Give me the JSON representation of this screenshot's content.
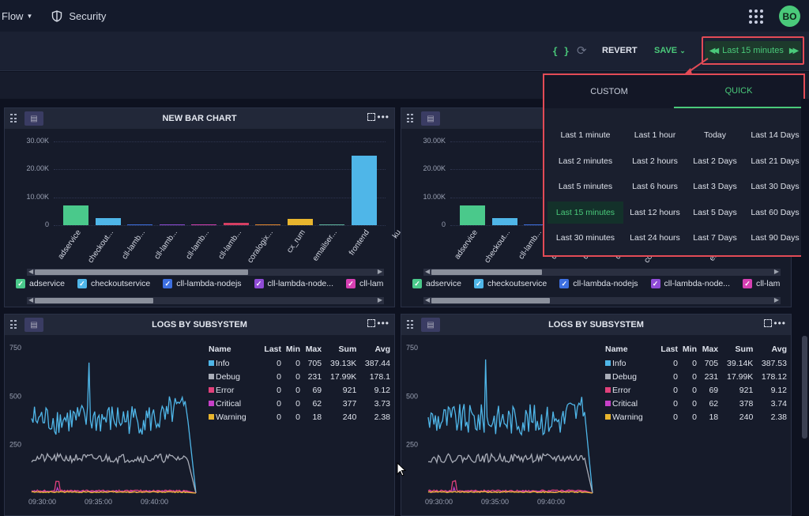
{
  "topbar": {
    "flow_label": "Flow",
    "security_label": "Security",
    "avatar_initials": "BO"
  },
  "toolbar": {
    "braces_icon": "{ }",
    "revert_label": "REVERT",
    "save_label": "SAVE",
    "time_range_label": "Last 15 minutes"
  },
  "dropdown": {
    "tabs": [
      "CUSTOM",
      "QUICK"
    ],
    "active_tab": "QUICK",
    "options": [
      [
        "Last 1 minute",
        "Last 1 hour",
        "Today",
        "Last 14 Days"
      ],
      [
        "Last 2 minutes",
        "Last 2 hours",
        "Last 2 Days",
        "Last 21 Days"
      ],
      [
        "Last 5 minutes",
        "Last 6 hours",
        "Last 3 Days",
        "Last 30 Days"
      ],
      [
        "Last 15 minutes",
        "Last 12 hours",
        "Last 5 Days",
        "Last 60 Days"
      ],
      [
        "Last 30 minutes",
        "Last 24 hours",
        "Last 7 Days",
        "Last 90 Days"
      ]
    ],
    "selected": "Last 15 minutes"
  },
  "bar_panels": [
    {
      "title": "NEW BAR CHART"
    },
    {
      "title": ""
    }
  ],
  "bar_chart": {
    "y_ticks": [
      "30.00K",
      "20.00K",
      "10.00K",
      "0"
    ],
    "categories": [
      "adservice",
      "checkout...",
      "cll-lamb...",
      "cll-lamb...",
      "cll-lamb...",
      "cll-lamb...",
      "coralogix...",
      "cx_rum",
      "emailser...",
      "frontend",
      "ku"
    ],
    "legend": [
      {
        "name": "adservice",
        "color": "#4ac98b"
      },
      {
        "name": "checkoutservice",
        "color": "#4fb6e8"
      },
      {
        "name": "cll-lambda-nodejs",
        "color": "#3d6fe0"
      },
      {
        "name": "cll-lambda-node...",
        "color": "#8f4bd6"
      },
      {
        "name": "cll-lamb",
        "color": "#d63fb2"
      }
    ]
  },
  "chart_data": [
    {
      "type": "bar",
      "title": "NEW BAR CHART",
      "categories": [
        "adservice",
        "checkout...",
        "cll-lamb...",
        "cll-lamb...",
        "cll-lamb...",
        "cll-lamb...",
        "coralogix...",
        "cx_rum",
        "emailser...",
        "frontend"
      ],
      "values": [
        7000,
        2500,
        400,
        100,
        100,
        800,
        200,
        2200,
        100,
        25000
      ],
      "colors": [
        "#4ac98b",
        "#4fb6e8",
        "#3d6fe0",
        "#8f4bd6",
        "#d63fb2",
        "#d63f62",
        "#e88a2e",
        "#e8b52e",
        "#60b8a0",
        "#4fb6e8"
      ],
      "ylim": [
        0,
        30000
      ]
    },
    {
      "type": "line",
      "title": "LOGS BY SUBSYSTEM",
      "x_ticks": [
        "09:30:00",
        "09:35:00",
        "09:40:00"
      ],
      "y_ticks": [
        "750",
        "500",
        "250"
      ],
      "ylim": [
        0,
        750
      ],
      "series": [
        {
          "name": "Info",
          "last": "0",
          "min": "0",
          "max": "705",
          "sum": "39.13K",
          "avg": "387.44"
        },
        {
          "name": "Debug",
          "last": "0",
          "min": "0",
          "max": "231",
          "sum": "17.99K",
          "avg": "178.1"
        },
        {
          "name": "Error",
          "last": "0",
          "min": "0",
          "max": "69",
          "sum": "921",
          "avg": "9.12"
        },
        {
          "name": "Critical",
          "last": "0",
          "min": "0",
          "max": "62",
          "sum": "377",
          "avg": "3.73"
        },
        {
          "name": "Warning",
          "last": "0",
          "min": "0",
          "max": "18",
          "sum": "240",
          "avg": "2.38"
        }
      ]
    },
    {
      "type": "line",
      "title": "LOGS BY SUBSYSTEM",
      "x_ticks": [
        "09:30:00",
        "09:35:00",
        "09:40:00"
      ],
      "y_ticks": [
        "750",
        "500",
        "250"
      ],
      "ylim": [
        0,
        750
      ],
      "series": [
        {
          "name": "Info",
          "last": "0",
          "min": "0",
          "max": "705",
          "sum": "39.14K",
          "avg": "387.53"
        },
        {
          "name": "Debug",
          "last": "0",
          "min": "0",
          "max": "231",
          "sum": "17.99K",
          "avg": "178.12"
        },
        {
          "name": "Error",
          "last": "0",
          "min": "0",
          "max": "69",
          "sum": "921",
          "avg": "9.12"
        },
        {
          "name": "Critical",
          "last": "0",
          "min": "0",
          "max": "62",
          "sum": "378",
          "avg": "3.74"
        },
        {
          "name": "Warning",
          "last": "0",
          "min": "0",
          "max": "18",
          "sum": "240",
          "avg": "2.38"
        }
      ]
    }
  ],
  "log_table_headers": [
    "Name",
    "Last",
    "Min",
    "Max",
    "Sum",
    "Avg"
  ],
  "series_colors": {
    "Info": "#4fb6e8",
    "Debug": "#a9adb8",
    "Error": "#e0417b",
    "Critical": "#c640c8",
    "Warning": "#e8b52e"
  }
}
